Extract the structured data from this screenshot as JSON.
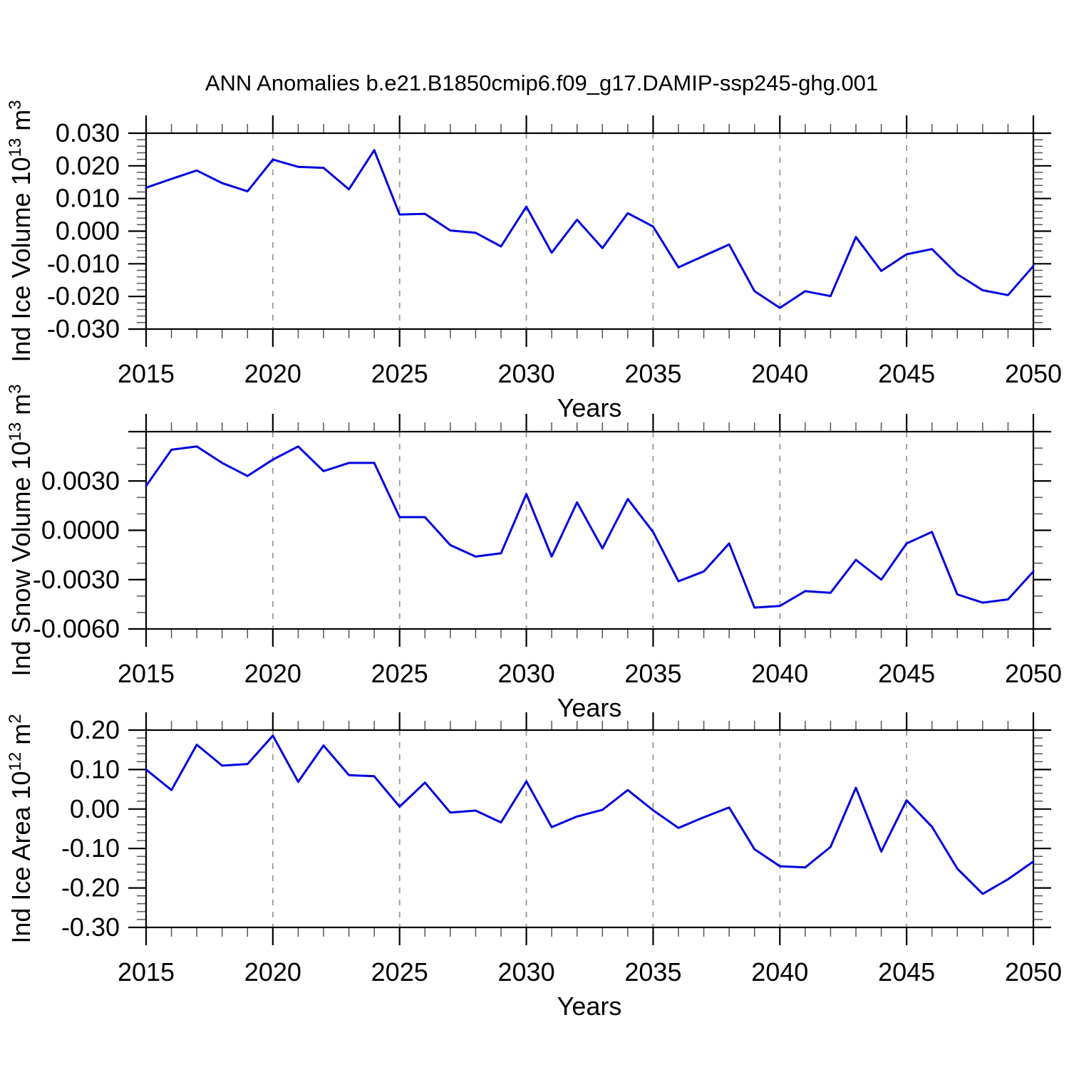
{
  "figure": {
    "title": "ANN Anomalies b.e21.B1850cmip6.f09_g17.DAMIP-ssp245-ghg.001"
  },
  "colors": {
    "line": "#0000e0",
    "frame": "#000000",
    "grid": "#999999",
    "minor_tick": "#555555",
    "background": "#ffffff"
  },
  "chart_data": [
    {
      "type": "line",
      "ylabel": "Ind Ice Volume 10¹³ m³",
      "ylabel_parts": [
        {
          "t": "Ind Ice Volume 10"
        },
        {
          "t": "13",
          "sup": true
        },
        {
          "t": " m"
        },
        {
          "t": "3",
          "sup": true
        }
      ],
      "xlabel": "Years",
      "xlim": [
        2015,
        2050
      ],
      "ylim": [
        -0.03,
        0.03
      ],
      "major_step": 0.01,
      "minor_step": 0.002,
      "grid_on": true,
      "grid_x": [
        2020,
        2025,
        2030,
        2035,
        2040,
        2045
      ],
      "xticks": [
        2015,
        2020,
        2025,
        2030,
        2035,
        2040,
        2045,
        2050
      ],
      "yticks": [
        {
          "v": 0.03,
          "label": "0.030"
        },
        {
          "v": 0.02,
          "label": "0.020"
        },
        {
          "v": 0.01,
          "label": "0.010"
        },
        {
          "v": 0.0,
          "label": "0.000"
        },
        {
          "v": -0.01,
          "label": "-0.010"
        },
        {
          "v": -0.02,
          "label": "-0.020"
        },
        {
          "v": -0.03,
          "label": "-0.030"
        }
      ],
      "x": [
        2015,
        2016,
        2017,
        2018,
        2019,
        2020,
        2021,
        2022,
        2023,
        2024,
        2025,
        2026,
        2027,
        2028,
        2029,
        2030,
        2031,
        2032,
        2033,
        2034,
        2035,
        2036,
        2037,
        2038,
        2039,
        2040,
        2041,
        2042,
        2043,
        2044,
        2045,
        2046,
        2047,
        2048,
        2049,
        2050
      ],
      "values": [
        0.0133,
        0.016,
        0.0186,
        0.0147,
        0.0122,
        0.0219,
        0.0197,
        0.0194,
        0.0128,
        0.0248,
        0.0051,
        0.0053,
        0.0002,
        -0.0005,
        -0.0047,
        0.0075,
        -0.0066,
        0.0035,
        -0.0052,
        0.0055,
        0.0014,
        -0.0111,
        -0.0076,
        -0.0041,
        -0.0184,
        -0.0235,
        -0.0184,
        -0.0199,
        -0.0018,
        -0.0122,
        -0.0071,
        -0.0055,
        -0.0132,
        -0.0181,
        -0.0196,
        -0.0107
      ]
    },
    {
      "type": "line",
      "ylabel": "Ind Snow Volume 10¹³ m³",
      "ylabel_parts": [
        {
          "t": "Ind Snow Volume 10"
        },
        {
          "t": "13",
          "sup": true
        },
        {
          "t": " m"
        },
        {
          "t": "3",
          "sup": true
        }
      ],
      "xlabel": "Years",
      "xlim": [
        2015,
        2050
      ],
      "ylim": [
        -0.006,
        0.006
      ],
      "major_step": 0.003,
      "minor_step": 0.001,
      "grid_on": true,
      "grid_x": [
        2020,
        2025,
        2030,
        2035,
        2040,
        2045
      ],
      "xticks": [
        2015,
        2020,
        2025,
        2030,
        2035,
        2040,
        2045,
        2050
      ],
      "yticks": [
        {
          "v": 0.006,
          "label": null
        },
        {
          "v": 0.003,
          "label": "0.0030"
        },
        {
          "v": 0.0,
          "label": "0.0000"
        },
        {
          "v": -0.003,
          "label": "-0.0030"
        },
        {
          "v": -0.006,
          "label": "-0.0060"
        }
      ],
      "x": [
        2015,
        2016,
        2017,
        2018,
        2019,
        2020,
        2021,
        2022,
        2023,
        2024,
        2025,
        2026,
        2027,
        2028,
        2029,
        2030,
        2031,
        2032,
        2033,
        2034,
        2035,
        2036,
        2037,
        2038,
        2039,
        2040,
        2041,
        2042,
        2043,
        2044,
        2045,
        2046,
        2047,
        2048,
        2049,
        2050
      ],
      "values": [
        0.0027,
        0.0049,
        0.0051,
        0.0041,
        0.0033,
        0.0043,
        0.0051,
        0.0036,
        0.0041,
        0.0041,
        0.0008,
        0.0008,
        -0.0009,
        -0.0016,
        -0.0014,
        0.0022,
        -0.0016,
        0.0017,
        -0.0011,
        0.0019,
        -0.0001,
        -0.0031,
        -0.0025,
        -0.0008,
        -0.0047,
        -0.0046,
        -0.0037,
        -0.0038,
        -0.0018,
        -0.003,
        -0.0008,
        -0.0001,
        -0.0039,
        -0.0044,
        -0.0042,
        -0.0025
      ]
    },
    {
      "type": "line",
      "ylabel": "Ind Ice Area 10¹² m²",
      "ylabel_parts": [
        {
          "t": "Ind Ice Area 10"
        },
        {
          "t": "12",
          "sup": true
        },
        {
          "t": " m"
        },
        {
          "t": "2",
          "sup": true
        }
      ],
      "xlabel": "Years",
      "xlim": [
        2015,
        2050
      ],
      "ylim": [
        -0.3,
        0.2
      ],
      "major_step": 0.1,
      "minor_step": 0.02,
      "grid_on": true,
      "grid_x": [
        2020,
        2025,
        2030,
        2035,
        2040,
        2045
      ],
      "xticks": [
        2015,
        2020,
        2025,
        2030,
        2035,
        2040,
        2045,
        2050
      ],
      "yticks": [
        {
          "v": 0.2,
          "label": "0.20"
        },
        {
          "v": 0.1,
          "label": "0.10"
        },
        {
          "v": 0.0,
          "label": "0.00"
        },
        {
          "v": -0.1,
          "label": "-0.10"
        },
        {
          "v": -0.2,
          "label": "-0.20"
        },
        {
          "v": -0.3,
          "label": "-0.30"
        }
      ],
      "x": [
        2015,
        2016,
        2017,
        2018,
        2019,
        2020,
        2021,
        2022,
        2023,
        2024,
        2025,
        2026,
        2027,
        2028,
        2029,
        2030,
        2031,
        2032,
        2033,
        2034,
        2035,
        2036,
        2037,
        2038,
        2039,
        2040,
        2041,
        2042,
        2043,
        2044,
        2045,
        2046,
        2047,
        2048,
        2049,
        2050
      ],
      "values": [
        0.1,
        0.048,
        0.163,
        0.11,
        0.114,
        0.186,
        0.069,
        0.161,
        0.086,
        0.083,
        0.006,
        0.067,
        -0.009,
        -0.004,
        -0.034,
        0.07,
        -0.046,
        -0.019,
        -0.002,
        0.048,
        -0.003,
        -0.048,
        -0.021,
        0.004,
        -0.102,
        -0.145,
        -0.148,
        -0.096,
        0.054,
        -0.108,
        0.022,
        -0.045,
        -0.151,
        -0.215,
        -0.178,
        -0.133
      ]
    }
  ]
}
